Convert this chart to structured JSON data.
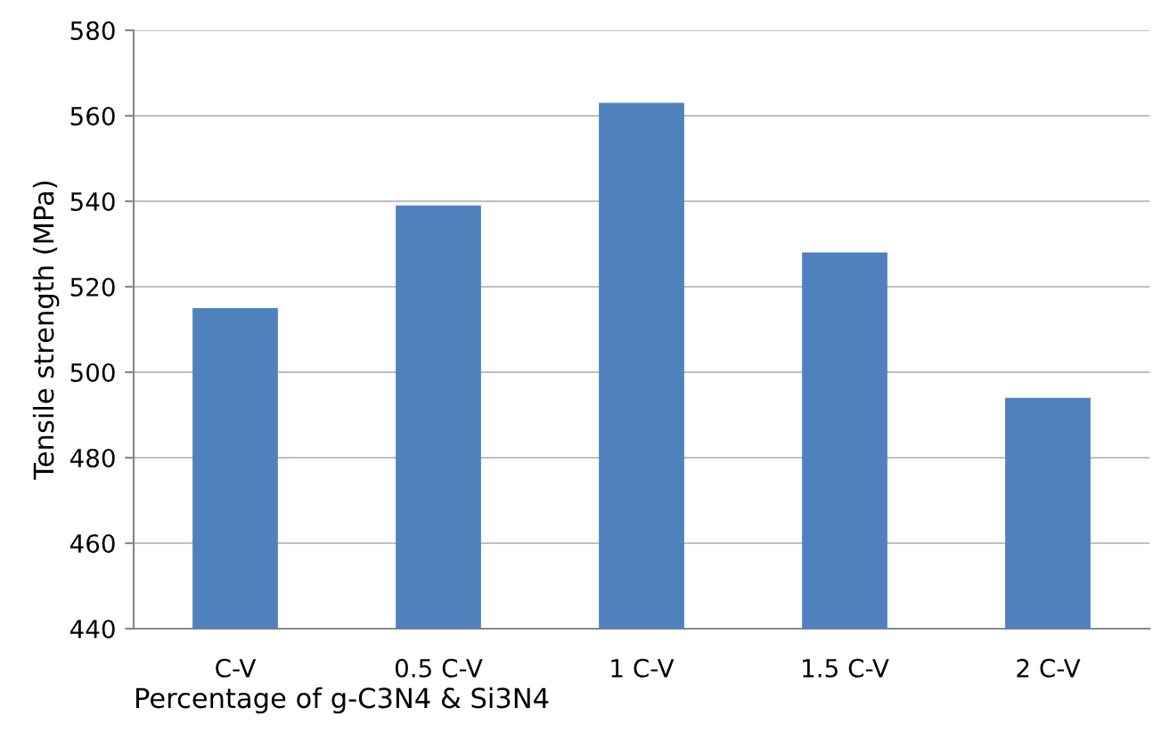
{
  "chart_data": {
    "type": "bar",
    "xlabel": "Percentage of g-C3N4 & Si3N4",
    "ylabel": "Tensile strength (MPa)",
    "categories": [
      "C-V",
      "0.5 C-V",
      "1 C-V",
      "1.5 C-V",
      "2 C-V"
    ],
    "values": [
      515,
      539,
      563,
      528,
      494
    ],
    "color": "#4f81bd",
    "ylim": [
      440,
      580
    ],
    "yticks": [
      440,
      460,
      480,
      500,
      520,
      540,
      560,
      580
    ],
    "grid": "y",
    "legend": false
  }
}
